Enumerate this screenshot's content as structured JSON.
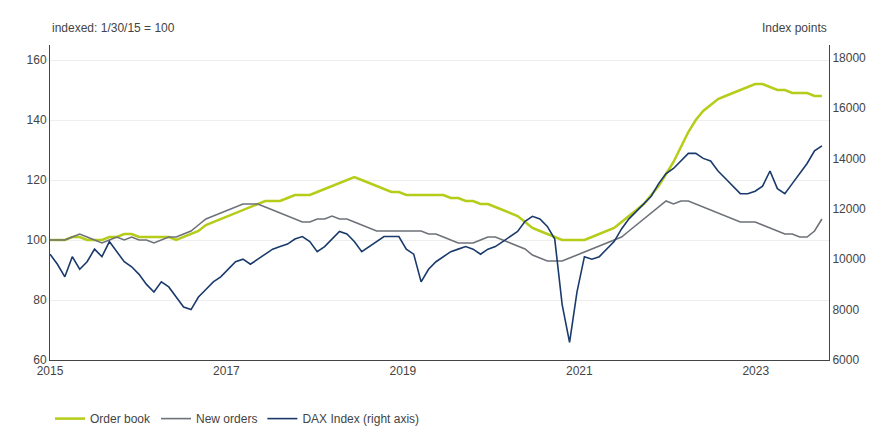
{
  "chart_data": {
    "type": "line",
    "ylabel": "indexed: 1/30/15 = 100",
    "y2label": "Index points",
    "x": [
      2015,
      2015.0841,
      2015.1683,
      2015.2524,
      2015.3365,
      2015.4207,
      2015.5048,
      2015.5889,
      2015.6731,
      2015.7572,
      2015.8413,
      2015.9255,
      2016.0096,
      2016.09375,
      2016.1779,
      2016.262,
      2016.3462,
      2016.4303,
      2016.5144,
      2016.5986,
      2016.6827,
      2016.7668,
      2016.851,
      2016.9351,
      2017.0192,
      2017.1034,
      2017.1875,
      2017.2716,
      2017.3558,
      2017.4399,
      2017.524,
      2017.6082,
      2017.6923,
      2017.7764,
      2017.8606,
      2017.9447,
      2018.0288,
      2018.113,
      2018.1971,
      2018.28125,
      2018.3654,
      2018.4495,
      2018.5337,
      2018.6178,
      2018.7019,
      2018.7861,
      2018.8702,
      2018.9543,
      2019.0385,
      2019.1226,
      2019.2067,
      2019.2909,
      2019.375,
      2019.4591,
      2019.5433,
      2019.6274,
      2019.7115,
      2019.7957,
      2019.8798,
      2019.9639,
      2020.0481,
      2020.1322,
      2020.2163,
      2020.3005,
      2020.3846,
      2020.46875,
      2020.5529,
      2020.637,
      2020.7212,
      2020.8053,
      2020.8894,
      2020.9736,
      2021.0577,
      2021.1418,
      2021.226,
      2021.3101,
      2021.3942,
      2021.4784,
      2021.5625,
      2021.6466,
      2021.7308,
      2021.8149,
      2021.899,
      2021.9832,
      2022.0673,
      2022.1514,
      2022.2356,
      2022.3197,
      2022.4038,
      2022.488,
      2022.5721,
      2022.65625,
      2022.7404,
      2022.8245,
      2022.9087,
      2022.9928,
      2023.0769,
      2023.1611,
      2023.2452,
      2023.3293,
      2023.4135,
      2023.4976,
      2023.5817,
      2023.6659,
      2023.75
    ],
    "xlim": [
      2015,
      2023.83
    ],
    "xticks": [
      2015,
      2017,
      2019,
      2021,
      2023
    ],
    "ylim": [
      60,
      165
    ],
    "yticks": [
      60,
      80,
      100,
      120,
      140,
      160
    ],
    "y2lim": [
      6000,
      18500
    ],
    "y2ticks": [
      6000,
      8000,
      10000,
      12000,
      14000,
      16000,
      18000
    ],
    "grid": true,
    "legend": "bottom",
    "series": [
      {
        "name": "Order book",
        "color": "#b5cc18",
        "values": [
          100,
          100,
          100,
          101,
          101,
          100,
          100,
          100,
          101,
          101,
          102,
          102,
          101,
          101,
          101,
          101,
          101,
          100,
          101,
          102,
          103,
          105,
          106,
          107,
          108,
          109,
          110,
          111,
          112,
          113,
          113,
          113,
          114,
          115,
          115,
          115,
          116,
          117,
          118,
          119,
          120,
          121,
          120,
          119,
          118,
          117,
          116,
          116,
          115,
          115,
          115,
          115,
          115,
          115,
          114,
          114,
          113,
          113,
          112,
          112,
          111,
          110,
          109,
          108,
          106,
          104,
          103,
          102,
          101,
          100,
          100,
          100,
          100,
          101,
          102,
          103,
          104,
          106,
          108,
          110,
          112,
          115,
          118,
          122,
          126,
          131,
          136,
          140,
          143,
          145,
          147,
          148,
          149,
          150,
          151,
          152,
          152,
          151,
          150,
          150,
          149,
          149,
          149,
          148,
          148
        ]
      },
      {
        "name": "New orders",
        "color": "#6d7278",
        "values": [
          100,
          100,
          100,
          101,
          102,
          101,
          100,
          99,
          100,
          101,
          100,
          101,
          100,
          100,
          99,
          100,
          101,
          101,
          102,
          103,
          105,
          107,
          108,
          109,
          110,
          111,
          112,
          112,
          112,
          111,
          110,
          109,
          108,
          107,
          106,
          106,
          107,
          107,
          108,
          107,
          107,
          106,
          105,
          104,
          103,
          103,
          103,
          103,
          103,
          103,
          103,
          102,
          102,
          101,
          100,
          99,
          99,
          99,
          100,
          101,
          101,
          100,
          99,
          98,
          97,
          95,
          94,
          93,
          93,
          93,
          94,
          95,
          96,
          97,
          98,
          99,
          100,
          101,
          103,
          105,
          107,
          109,
          111,
          113,
          112,
          113,
          113,
          112,
          111,
          110,
          109,
          108,
          107,
          106,
          106,
          106,
          105,
          104,
          103,
          102,
          102,
          101,
          101,
          103,
          107
        ]
      },
      {
        "name": "DAX Index (right axis)",
        "color": "#1a3a6b",
        "axis": "y2",
        "values": [
          10200,
          9800,
          9300,
          10100,
          9600,
          9900,
          10400,
          10100,
          10700,
          10300,
          9900,
          9700,
          9400,
          9000,
          8700,
          9100,
          8900,
          8500,
          8100,
          8000,
          8500,
          8800,
          9100,
          9300,
          9600,
          9900,
          10000,
          9800,
          10000,
          10200,
          10400,
          10500,
          10600,
          10800,
          10900,
          10700,
          10300,
          10500,
          10800,
          11100,
          11000,
          10700,
          10300,
          10500,
          10700,
          10900,
          10900,
          10900,
          10400,
          10200,
          9100,
          9600,
          9900,
          10100,
          10300,
          10400,
          10500,
          10400,
          10200,
          10400,
          10500,
          10700,
          10900,
          11100,
          11500,
          11700,
          11600,
          11300,
          10800,
          8200,
          6700,
          8700,
          10100,
          10000,
          10100,
          10400,
          10700,
          11200,
          11600,
          11900,
          12200,
          12500,
          13000,
          13400,
          13600,
          13900,
          14200,
          14200,
          14000,
          13900,
          13500,
          13200,
          12900,
          12600,
          12600,
          12700,
          12900,
          13500,
          12800,
          12600,
          13000,
          13400,
          13800,
          14300,
          14500
        ]
      }
    ]
  }
}
